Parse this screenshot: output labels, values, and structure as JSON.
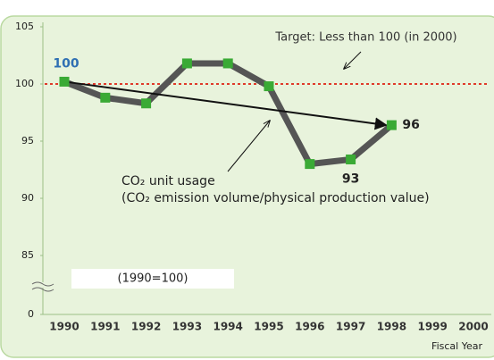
{
  "chart_data": {
    "type": "line",
    "categories": [
      "1990",
      "1991",
      "1992",
      "1993",
      "1994",
      "1995",
      "1996",
      "1997",
      "1998",
      "1999",
      "2000"
    ],
    "series": [
      {
        "name": "CO₂ unit usage",
        "color": "#555555",
        "marker_color": "#3aaa35",
        "values": [
          100.2,
          98.8,
          98.3,
          101.8,
          101.8,
          99.8,
          93.0,
          93.4,
          96.4,
          null,
          null
        ],
        "value_labels": [
          "100",
          null,
          null,
          null,
          null,
          null,
          null,
          "93",
          "96",
          null,
          null
        ]
      }
    ],
    "ylim": [
      85,
      105
    ],
    "yticks": [
      0,
      85,
      90,
      95,
      100,
      105
    ],
    "axis_break": true,
    "target": {
      "value": 100,
      "color": "#e03a2a",
      "label": "Target: Less than 100 (in 2000)"
    },
    "series_label": [
      "CO₂ unit usage",
      "(CO₂ emission volume/physical production value)"
    ],
    "base_note": "(1990=100)",
    "xlabel": "Fiscal Year"
  }
}
